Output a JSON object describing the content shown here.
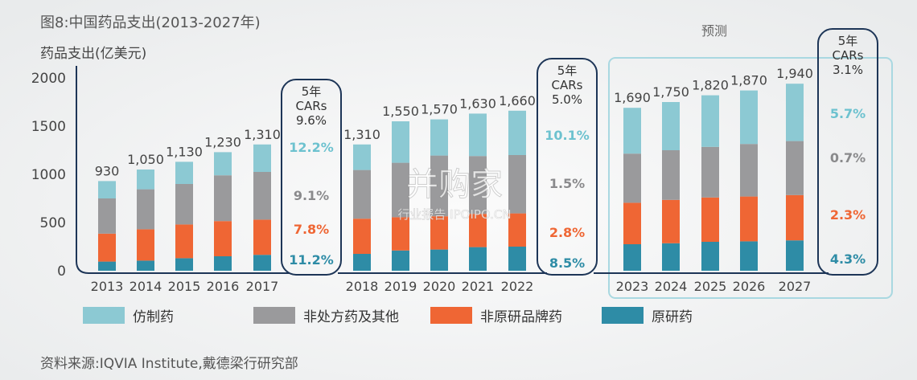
{
  "title": "图8:中国药品支出(2013-2027年)",
  "ylabel": "药品支出(亿美元)",
  "forecast_label": "预测",
  "source": "资料来源:IQVIA Institute,戴德梁行研究部",
  "watermark": {
    "main": "并购家",
    "sub": "行业报告 IPOIPO.CN"
  },
  "colors": {
    "generic": "#8cc9d3",
    "otc_other": "#9a9a9c",
    "non_original_brand": "#ef6634",
    "original": "#2e8ca6",
    "frame": "#1d3557",
    "forecast_frame": "#a9d8e1"
  },
  "legend": [
    {
      "key": "generic",
      "label": "仿制药"
    },
    {
      "key": "otc_other",
      "label": "非处方药及其他"
    },
    {
      "key": "non_original_brand",
      "label": "非原研品牌药"
    },
    {
      "key": "original",
      "label": "原研药"
    }
  ],
  "cagr_boxes": [
    {
      "heading": "5年",
      "cars": "CARs",
      "overall": "9.6%",
      "generic": "12.2%",
      "otc_other": "9.1%",
      "non_original_brand": "7.8%",
      "original": "11.2%"
    },
    {
      "heading": "5年",
      "cars": "CARs",
      "overall": "5.0%",
      "generic": "10.1%",
      "otc_other": "1.5%",
      "non_original_brand": "2.8%",
      "original": "8.5%"
    },
    {
      "heading": "5年",
      "cars": "CARs",
      "overall": "3.1%",
      "generic": "5.7%",
      "otc_other": "0.7%",
      "non_original_brand": "2.3%",
      "original": "4.3%"
    }
  ],
  "chart_data": {
    "type": "bar",
    "stacked": true,
    "categories": [
      "2013",
      "2014",
      "2015",
      "2016",
      "2017",
      "2018",
      "2019",
      "2020",
      "2021",
      "2022",
      "2023",
      "2024",
      "2025",
      "2026",
      "2027"
    ],
    "groups": [
      [
        "2013",
        "2014",
        "2015",
        "2016",
        "2017"
      ],
      [
        "2018",
        "2019",
        "2020",
        "2021",
        "2022"
      ],
      [
        "2023",
        "2024",
        "2025",
        "2026",
        "2027"
      ]
    ],
    "forecast_categories": [
      "2023",
      "2024",
      "2025",
      "2026",
      "2027"
    ],
    "total_labels": [
      "930",
      "1,050",
      "1,130",
      "1,230",
      "1,310",
      "1,310",
      "1,550",
      "1,570",
      "1,630",
      "1,660",
      "1,690",
      "1,750",
      "1,820",
      "1,870",
      "1,940"
    ],
    "series": [
      {
        "name": "原研药",
        "key": "original",
        "values": [
          95,
          105,
          130,
          150,
          165,
          175,
          210,
          220,
          245,
          250,
          275,
          285,
          300,
          305,
          315
        ]
      },
      {
        "name": "非原研品牌药",
        "key": "non_original_brand",
        "values": [
          290,
          325,
          350,
          365,
          365,
          365,
          345,
          345,
          345,
          345,
          430,
          450,
          460,
          465,
          470
        ]
      },
      {
        "name": "非处方药及其他",
        "key": "otc_other",
        "values": [
          365,
          415,
          420,
          475,
          495,
          505,
          565,
          630,
          600,
          605,
          510,
          515,
          525,
          545,
          560
        ]
      },
      {
        "name": "仿制药",
        "key": "generic",
        "values": [
          180,
          205,
          230,
          240,
          285,
          265,
          430,
          375,
          440,
          460,
          475,
          500,
          535,
          555,
          595
        ]
      }
    ],
    "yticks": [
      "0",
      "500",
      "1000",
      "1500",
      "2000"
    ],
    "ylim": [
      0,
      2000
    ],
    "grid": false
  }
}
